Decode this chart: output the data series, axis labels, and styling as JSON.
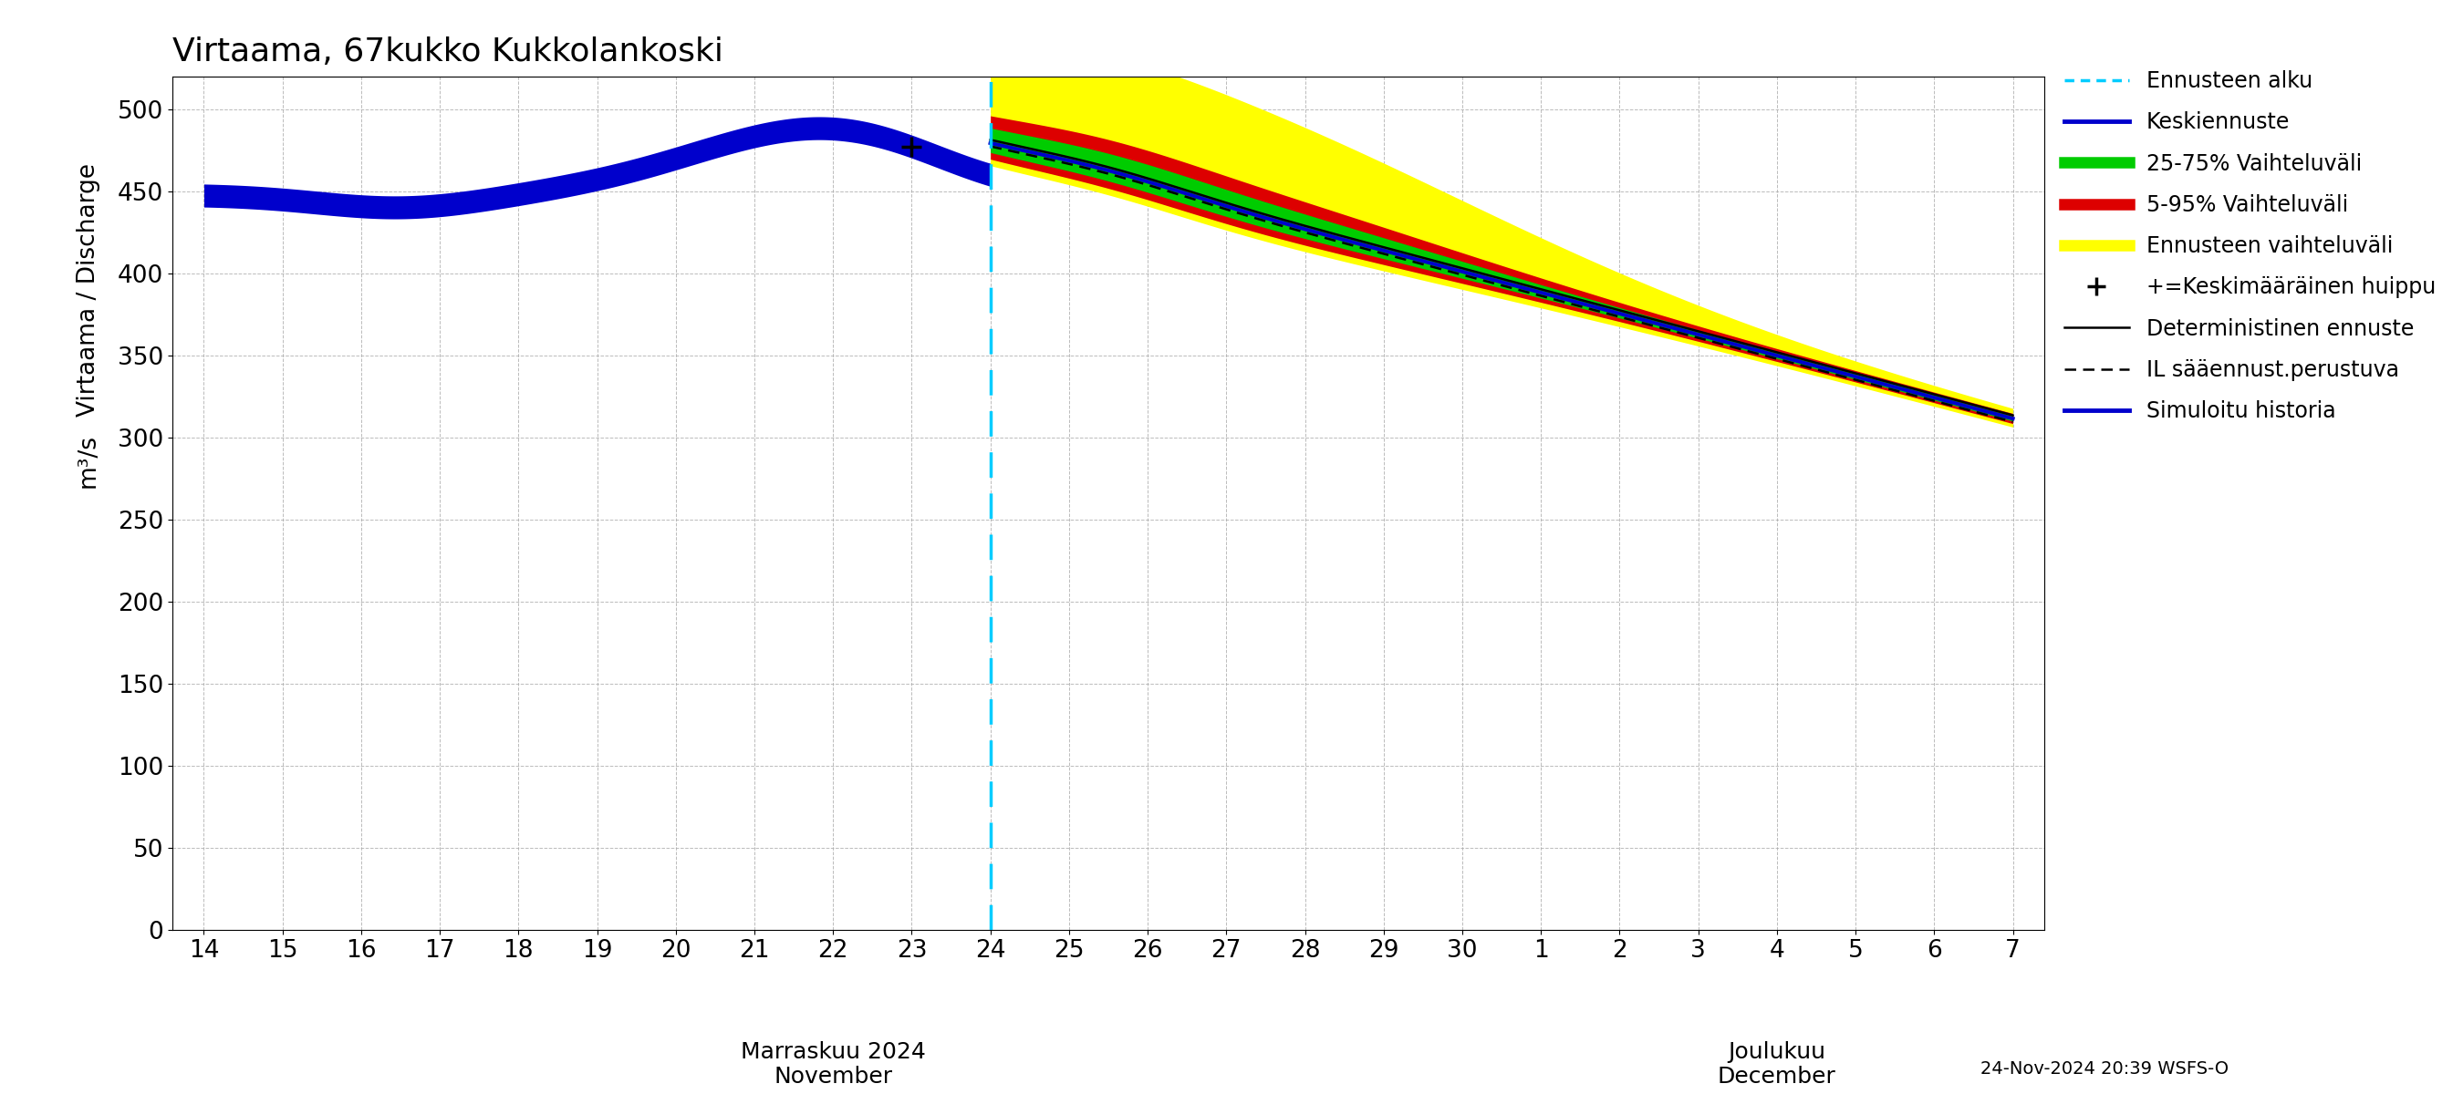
{
  "title": "Virtaama, 67kukko Kukkolankoski",
  "ylabel1": "Virtaama / Discharge",
  "ylabel2": "m³/s",
  "xlabel_nov": "Marraskuu 2024\nNovember",
  "xlabel_dec": "Joulukuu\nDecember",
  "footnote": "24-Nov-2024 20:39 WSFS-O",
  "ylim": [
    0,
    520
  ],
  "yticks": [
    0,
    50,
    100,
    150,
    200,
    250,
    300,
    350,
    400,
    450,
    500
  ],
  "background_color": "#ffffff",
  "grid_color": "#aaaaaa",
  "legend_items": [
    {
      "label": "Ennusteen alku",
      "color": "#00ccff",
      "linestyle": "dotted",
      "linewidth": 2
    },
    {
      "label": "Keskiennuste",
      "color": "#0000cc",
      "linestyle": "solid",
      "linewidth": 2
    },
    {
      "label": "25-75% Vaihteluväli",
      "color": "#00cc00",
      "linestyle": "solid",
      "linewidth": 6
    },
    {
      "label": "5-95% Vaihteluväli",
      "color": "#cc0000",
      "linestyle": "solid",
      "linewidth": 6
    },
    {
      "label": "Ennusteen vaihteluväli",
      "color": "#ffff00",
      "linestyle": "solid",
      "linewidth": 6
    },
    {
      "label": "+=Keskimääräinen huippu",
      "color": "#000000",
      "marker": "+",
      "markersize": 12
    },
    {
      "label": "Deterministinen ennuste",
      "color": "#000000",
      "linestyle": "solid",
      "linewidth": 1.5
    },
    {
      "label": "IL sääennust.perustuva",
      "color": "#000000",
      "linestyle": "dashed",
      "linewidth": 1.5
    },
    {
      "label": "Simuloitu historia",
      "color": "#0000cc",
      "linestyle": "solid",
      "linewidth": 3
    }
  ],
  "nov_ticks": [
    14,
    15,
    16,
    17,
    18,
    19,
    20,
    21,
    22,
    23,
    24,
    25,
    26,
    27,
    28,
    29,
    30
  ],
  "dec_ticks": [
    1,
    2,
    3,
    4,
    5,
    6,
    7
  ],
  "hist_color": "#0000cc",
  "hist_linewidth": 18,
  "fore_linewidth": 3
}
